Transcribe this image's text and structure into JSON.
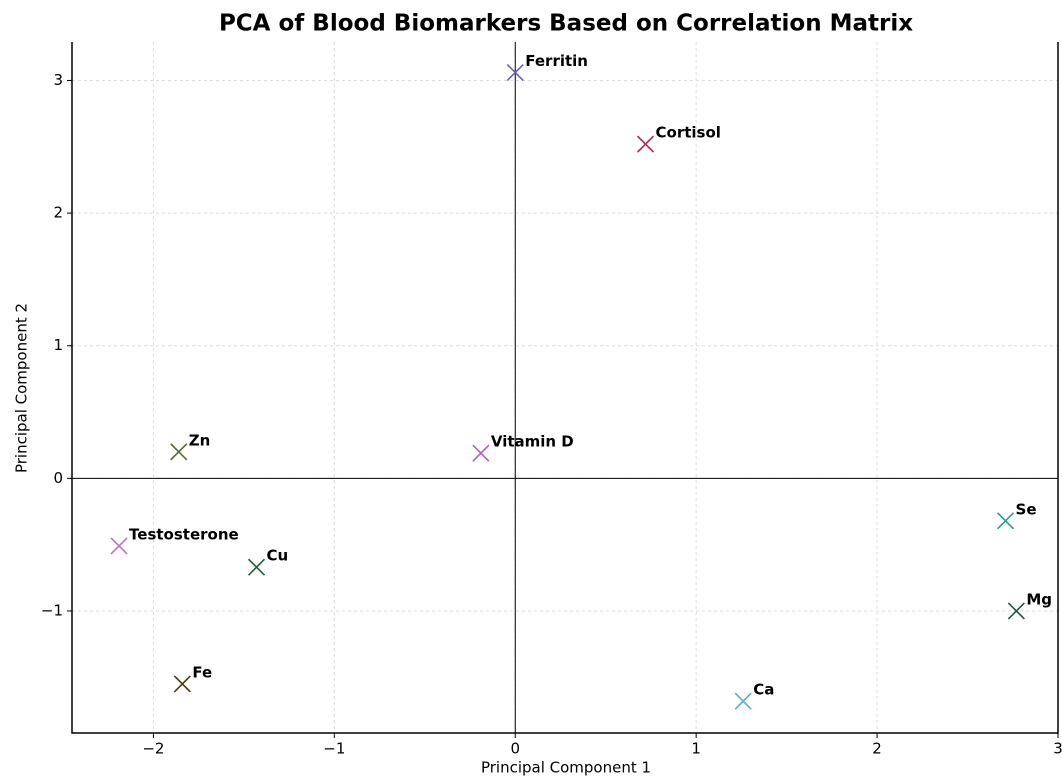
{
  "chart_data": {
    "type": "scatter",
    "title": "PCA of Blood Biomarkers Based on Correlation Matrix",
    "xlabel": "Principal Component 1",
    "ylabel": "Principal Component 2",
    "xlim": [
      -2.45,
      3.0
    ],
    "ylim": [
      -1.92,
      3.29
    ],
    "xticks": [
      {
        "value": -2,
        "label": "−2"
      },
      {
        "value": -1,
        "label": "−1"
      },
      0,
      1,
      2,
      3
    ],
    "yticks": [
      {
        "value": -1,
        "label": "−1"
      },
      0,
      1,
      2,
      3
    ],
    "grid": true,
    "series": [
      {
        "name": "Ferritin",
        "color": "#6a5fb5",
        "x": [
          0.0
        ],
        "values": [
          3.06
        ]
      },
      {
        "name": "Cortisol",
        "color": "#a0365a",
        "x": [
          0.72
        ],
        "values": [
          2.52
        ]
      },
      {
        "name": "Zn",
        "color": "#556b2f",
        "x": [
          -1.86
        ],
        "values": [
          0.2
        ]
      },
      {
        "name": "Vitamin D",
        "color": "#b05fc0",
        "x": [
          -0.19
        ],
        "values": [
          0.19
        ]
      },
      {
        "name": "Testosterone",
        "color": "#c070c8",
        "x": [
          -2.19
        ],
        "values": [
          -0.51
        ]
      },
      {
        "name": "Cu",
        "color": "#1e5e3a",
        "x": [
          -1.43
        ],
        "values": [
          -0.67
        ]
      },
      {
        "name": "Se",
        "color": "#2a9d8f",
        "x": [
          2.71
        ],
        "values": [
          -0.32
        ]
      },
      {
        "name": "Mg",
        "color": "#1a5a40",
        "x": [
          2.77
        ],
        "values": [
          -1.0
        ]
      },
      {
        "name": "Fe",
        "color": "#4a3a10",
        "x": [
          -1.84
        ],
        "values": [
          -1.55
        ]
      },
      {
        "name": "Ca",
        "color": "#5ab0c0",
        "x": [
          1.26
        ],
        "values": [
          -1.68
        ]
      }
    ]
  }
}
